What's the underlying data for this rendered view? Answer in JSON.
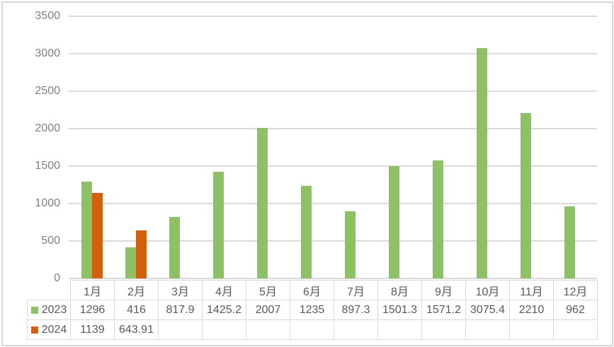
{
  "chart_data": {
    "type": "bar",
    "title": "",
    "xlabel": "",
    "ylabel": "",
    "categories": [
      "1月",
      "2月",
      "3月",
      "4月",
      "5月",
      "6月",
      "7月",
      "8月",
      "9月",
      "10月",
      "11月",
      "12月"
    ],
    "series": [
      {
        "name": "2023",
        "color": "#8DC163",
        "values": [
          1296,
          416,
          817.9,
          1425.2,
          2007,
          1235,
          897.3,
          1501.3,
          1571.2,
          3075.4,
          2210,
          962
        ],
        "display": [
          "1296",
          "416",
          "817.9",
          "1425.2",
          "2007",
          "1235",
          "897.3",
          "1501.3",
          "1571.2",
          "3075.4",
          "2210",
          "962"
        ]
      },
      {
        "name": "2024",
        "color": "#D2600E",
        "values": [
          1139,
          643.91,
          null,
          null,
          null,
          null,
          null,
          null,
          null,
          null,
          null,
          null
        ],
        "display": [
          "1139",
          "643.91",
          "",
          "",
          "",
          "",
          "",
          "",
          "",
          "",
          "",
          ""
        ]
      }
    ],
    "y_axis": {
      "min": 0,
      "max": 3500,
      "step": 500,
      "tick_labels": [
        "0",
        "500",
        "1000",
        "1500",
        "2000",
        "2500",
        "3000",
        "3500"
      ]
    },
    "grid": true,
    "legend_position": "table-rows-left"
  },
  "colors": {
    "series_2023": "#8DC163",
    "series_2024": "#D2600E",
    "gridline": "#DADADA",
    "table_border": "#D9D9D9",
    "frame_border": "#D9D9D9",
    "axis_text": "#7F7F7F",
    "table_text": "#595959",
    "background": "#FFFFFF"
  }
}
